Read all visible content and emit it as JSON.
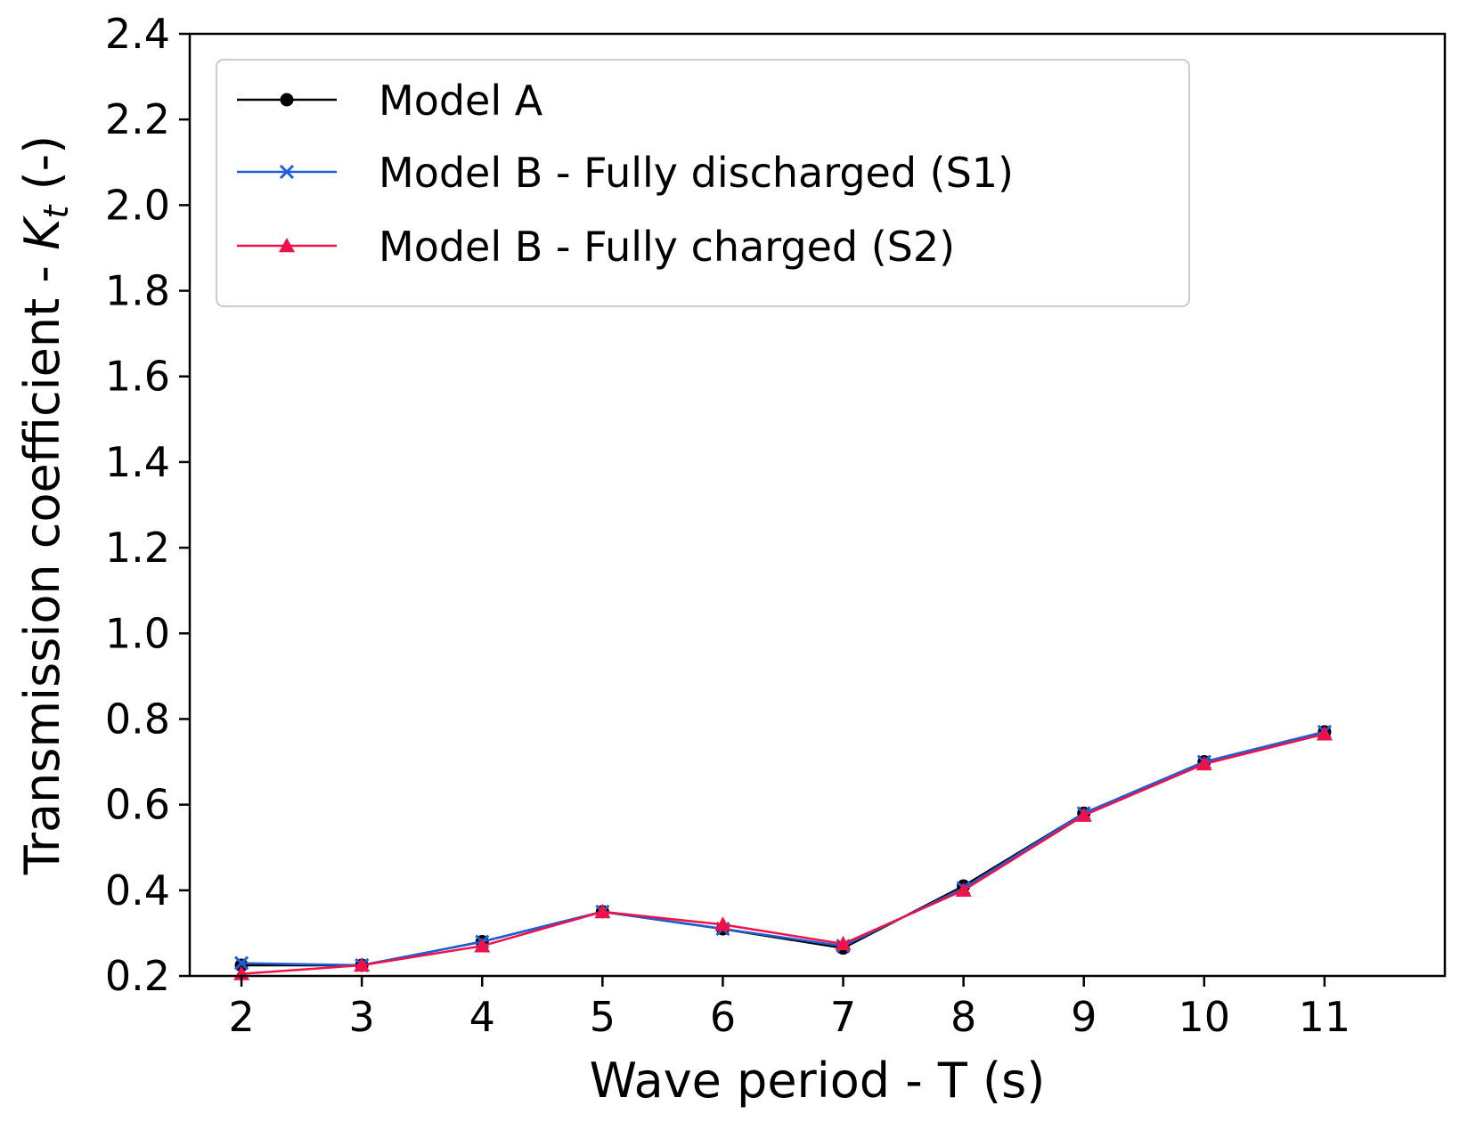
{
  "chart_data": {
    "type": "line",
    "xlabel": "Wave period - T (s)",
    "ylabel": {
      "main": "Transmission coefficient - ",
      "symbol": "K",
      "subscript": "t",
      "unit": " (-)"
    },
    "x": [
      2,
      3,
      4,
      5,
      6,
      7,
      8,
      9,
      10,
      11
    ],
    "xlim": [
      1.57,
      12.0
    ],
    "ylim": [
      0.2,
      2.4
    ],
    "xticks": [
      2,
      3,
      4,
      5,
      6,
      7,
      8,
      9,
      10,
      11
    ],
    "yticks": [
      0.2,
      0.4,
      0.6,
      0.8,
      1.0,
      1.2,
      1.4,
      1.6,
      1.8,
      2.0,
      2.2,
      2.4
    ],
    "ytick_labels": [
      "0.2",
      "0.4",
      "0.6",
      "0.8",
      "1.0",
      "1.2",
      "1.4",
      "1.6",
      "1.8",
      "2.0",
      "2.2",
      "2.4"
    ],
    "grid": false,
    "legend_position": "top-left",
    "series": [
      {
        "name": "Model A",
        "color": "#000000",
        "marker": "circle",
        "values": [
          0.225,
          0.225,
          0.28,
          0.35,
          0.31,
          0.265,
          0.41,
          0.58,
          0.7,
          0.77
        ]
      },
      {
        "name": "Model B - Fully discharged (S1)",
        "color": "#1f5fd6",
        "marker": "x",
        "values": [
          0.23,
          0.225,
          0.28,
          0.35,
          0.31,
          0.27,
          0.405,
          0.58,
          0.7,
          0.77
        ]
      },
      {
        "name": "Model B - Fully charged (S2)",
        "color": "#f0104a",
        "marker": "triangle",
        "values": [
          0.205,
          0.225,
          0.27,
          0.35,
          0.32,
          0.275,
          0.4,
          0.575,
          0.695,
          0.765
        ]
      }
    ]
  }
}
